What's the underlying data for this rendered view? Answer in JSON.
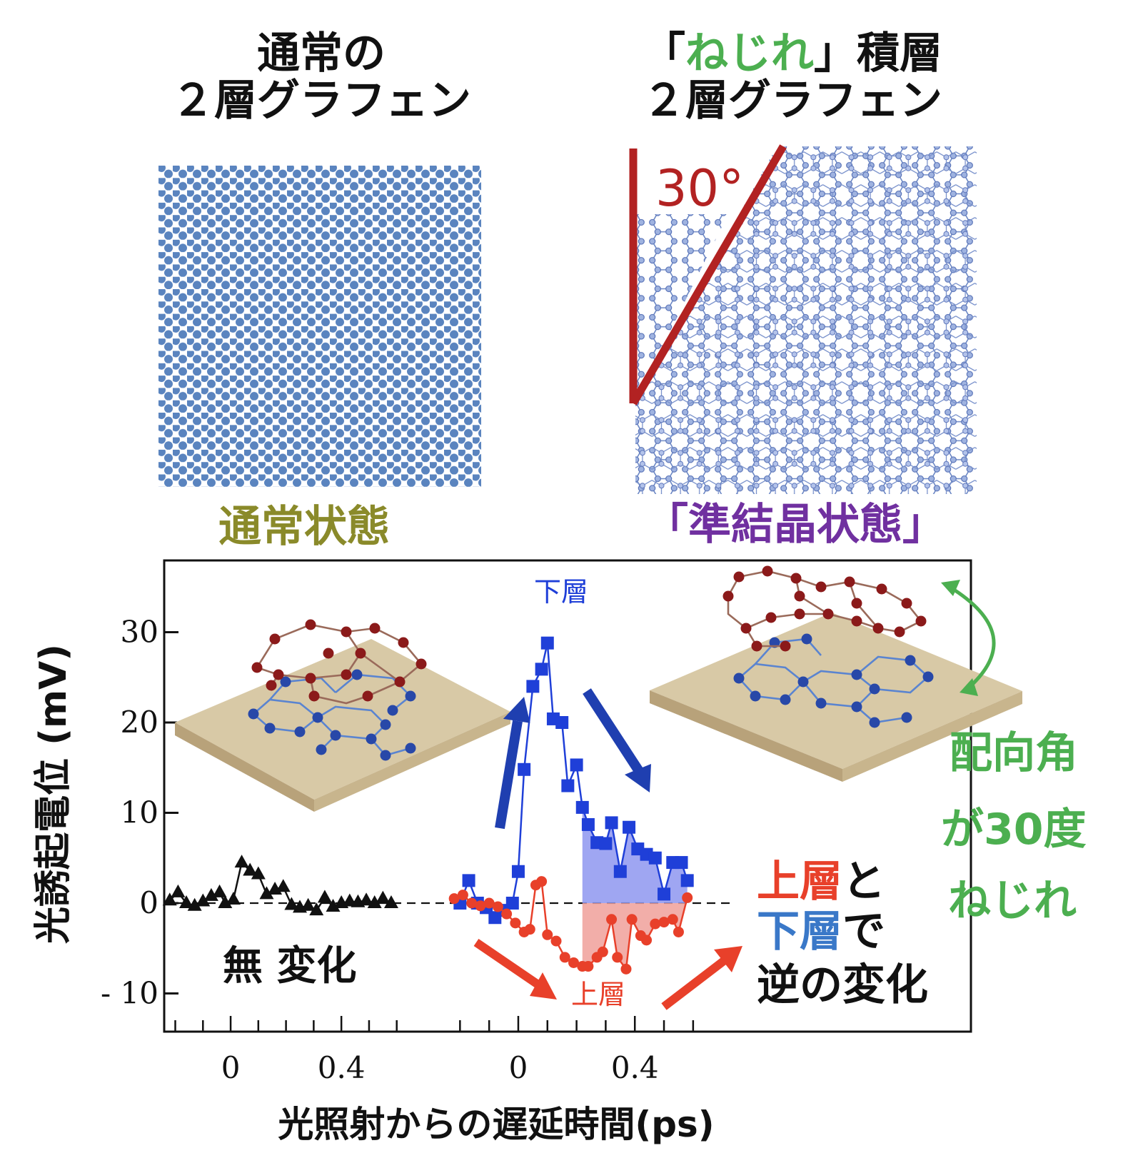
{
  "headers": {
    "left_line1": "通常の",
    "left_line2": "２層グラフェン",
    "right_bracket_open": "「",
    "right_highlight": "ねじれ",
    "right_bracket_close": "」積層",
    "right_line2": "２層グラフェン"
  },
  "states": {
    "normal": "通常状態",
    "quasicrystal": "「準結晶状態」"
  },
  "angle_label": "30°",
  "annotations": {
    "no_change": "無 変化",
    "lower_layer": "下層",
    "upper_layer": "上層",
    "rev_line1_red": "上層",
    "rev_line1_rest": "と",
    "rev_line2_blue": "下層",
    "rev_line2_rest": "で",
    "rev_line3": "逆の変化",
    "twist_line1": "配向角",
    "twist_line2": "が30度",
    "twist_line3": "ねじれ"
  },
  "colors": {
    "normal_state": "#8a8a2a",
    "quasicrystal_state": "#7030a0",
    "twist_green": "#4caf50",
    "angle_red": "#b22222",
    "lower_blue": "#1f3fd8",
    "upper_red": "#e8402a",
    "text_blue": "#3a78c8",
    "lattice_blue": "#5a84bf"
  },
  "chart_data": {
    "type": "line",
    "ylabel": "光誘起電位 (mV)",
    "xlabel": "光照射からの遅延時間(ps)",
    "ylim": [
      -15,
      37
    ],
    "yticks": [
      30,
      20,
      10,
      0,
      -10
    ],
    "ytick_labels": [
      "30",
      "20",
      "10",
      "0",
      "- 10"
    ],
    "panels": [
      {
        "name": "normal",
        "xlim": [
          -0.24,
          0.74
        ],
        "xticks": [
          0,
          0.4
        ],
        "xtick_labels": [
          "0",
          "0.4"
        ],
        "series": [
          {
            "marker": "triangle",
            "color": "#111111",
            "x": [
              -0.22,
              -0.19,
              -0.16,
              -0.13,
              -0.1,
              -0.07,
              -0.04,
              -0.02,
              0.01,
              0.04,
              0.07,
              0.1,
              0.13,
              0.16,
              0.19,
              0.22,
              0.25,
              0.28,
              0.31,
              0.34,
              0.37,
              0.4,
              0.43,
              0.46,
              0.49,
              0.52,
              0.55,
              0.58
            ],
            "y": [
              0.3,
              1.2,
              0.0,
              -0.3,
              0.2,
              0.8,
              1.2,
              0.0,
              0.4,
              4.5,
              3.6,
              3.2,
              1.0,
              1.5,
              1.8,
              -0.2,
              -0.5,
              -0.3,
              -0.8,
              0.6,
              -0.4,
              0.0,
              0.2,
              0.1,
              0.3,
              0.0,
              0.5,
              0.0
            ]
          }
        ]
      },
      {
        "name": "twisted",
        "xlim": [
          -0.24,
          0.74
        ],
        "xticks": [
          0,
          0.4
        ],
        "xtick_labels": [
          "0",
          "0.4"
        ],
        "series": [
          {
            "name": "下層",
            "marker": "square",
            "color": "#1f3fd8",
            "x": [
              -0.2,
              -0.17,
              -0.14,
              -0.11,
              -0.08,
              -0.05,
              -0.02,
              0.0,
              0.02,
              0.05,
              0.08,
              0.1,
              0.12,
              0.15,
              0.17,
              0.2,
              0.22,
              0.24,
              0.27,
              0.3,
              0.32,
              0.35,
              0.38,
              0.41,
              0.44,
              0.47,
              0.5,
              0.53,
              0.56,
              0.58
            ],
            "y": [
              0.0,
              2.5,
              0.0,
              -0.5,
              -1.6,
              -0.8,
              0.0,
              3.5,
              14.8,
              24.0,
              25.9,
              28.8,
              20.4,
              20.0,
              13.0,
              15.3,
              10.6,
              8.7,
              6.7,
              6.6,
              8.9,
              3.5,
              8.4,
              6.0,
              5.4,
              5.0,
              1.0,
              4.5,
              4.5,
              2.5
            ]
          },
          {
            "name": "上層",
            "marker": "circle",
            "color": "#e8402a",
            "x": [
              -0.22,
              -0.19,
              -0.16,
              -0.13,
              -0.1,
              -0.07,
              -0.04,
              -0.01,
              0.02,
              0.04,
              0.06,
              0.08,
              0.1,
              0.13,
              0.16,
              0.19,
              0.22,
              0.24,
              0.27,
              0.29,
              0.32,
              0.34,
              0.37,
              0.39,
              0.42,
              0.44,
              0.47,
              0.5,
              0.53,
              0.55,
              0.58
            ],
            "y": [
              0.5,
              0.9,
              0.0,
              -0.3,
              0.0,
              -0.4,
              -1.2,
              -2.2,
              -3.2,
              -2.9,
              2.0,
              2.4,
              -3.5,
              -4.2,
              -6.0,
              -6.6,
              -7.0,
              -7.0,
              -6.0,
              -5.4,
              -1.8,
              -6.0,
              -7.3,
              -1.8,
              -3.6,
              -4.1,
              -2.3,
              -2.1,
              -1.8,
              -3.2,
              0.6
            ]
          }
        ]
      }
    ]
  }
}
